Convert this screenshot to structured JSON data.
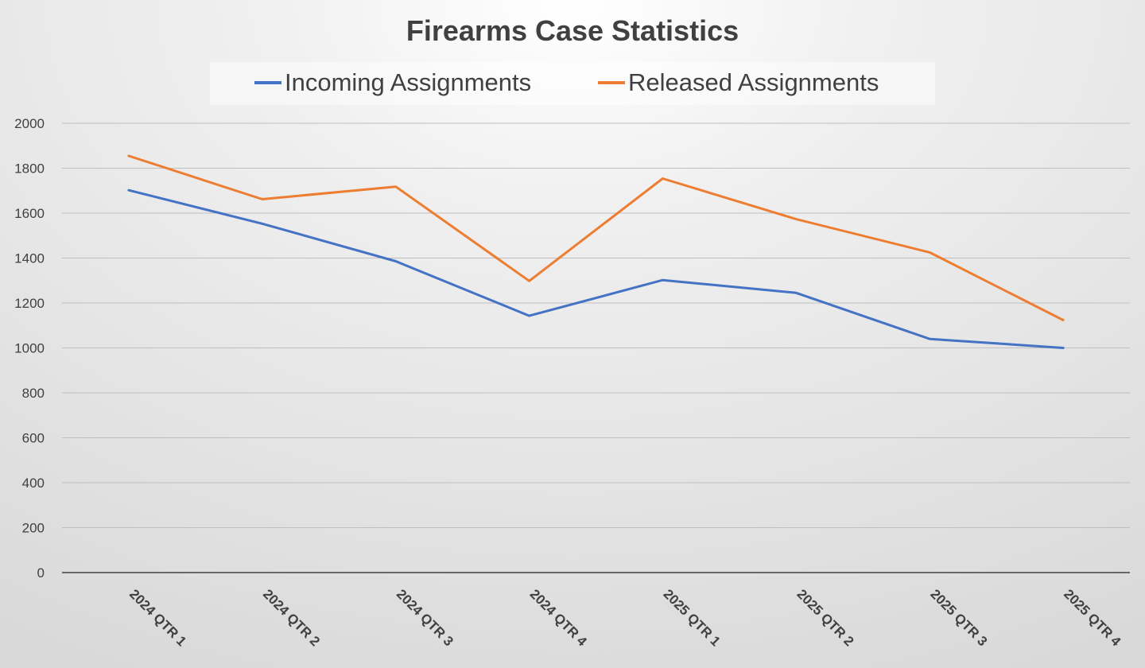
{
  "chart_data": {
    "type": "line",
    "title": "Firearms Case Statistics",
    "xlabel": "",
    "ylabel": "",
    "categories": [
      "2024 QTR 1",
      "2024 QTR 2",
      "2024 QTR 3",
      "2024 QTR 4",
      "2025 QTR 1",
      "2025 QTR 2",
      "2025 QTR 3",
      "2025 QTR 4"
    ],
    "series": [
      {
        "name": "Incoming Assignments",
        "color": "#4472c4",
        "values": [
          1702,
          1553,
          1386,
          1143,
          1302,
          1245,
          1040,
          1000
        ]
      },
      {
        "name": "Released Assignments",
        "color": "#ed7d31",
        "values": [
          1855,
          1662,
          1718,
          1298,
          1754,
          1573,
          1425,
          1124
        ]
      }
    ],
    "ylim": [
      0,
      2000
    ],
    "yticks": [
      0,
      200,
      400,
      600,
      800,
      1000,
      1200,
      1400,
      1600,
      1800,
      2000
    ],
    "grid": true,
    "legend_position": "top"
  }
}
